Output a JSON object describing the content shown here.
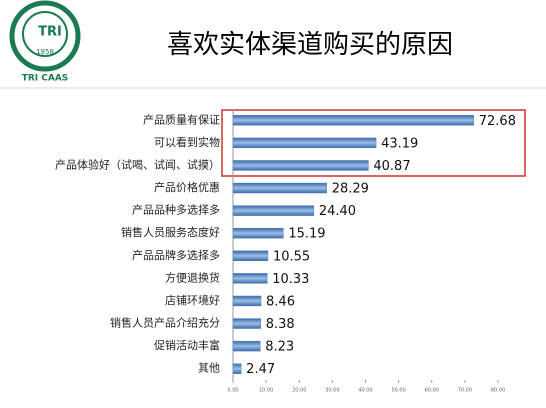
{
  "logo": {
    "abbr": "TRI",
    "year": "1958",
    "name": "TRI CAAS"
  },
  "chart_data": {
    "type": "bar",
    "orientation": "horizontal",
    "title": "喜欢实体渠道购买的原因",
    "categories": [
      "产品质量有保证",
      "可以看到实物",
      "产品体验好（试喝、试闻、试摸）",
      "产品价格优惠",
      "产品品种多选择多",
      "销售人员服务态度好",
      "产品品牌多选择多",
      "方便退换货",
      "店铺环境好",
      "销售人员产品介绍充分",
      "促销活动丰富",
      "其他"
    ],
    "values": [
      72.68,
      43.19,
      40.87,
      28.29,
      24.4,
      15.19,
      10.55,
      10.33,
      8.46,
      8.38,
      8.23,
      2.47
    ],
    "value_labels": [
      "72.68",
      "43.19",
      "40.87",
      "28.29",
      "24.40",
      "15.19",
      "10.55",
      "10.33",
      "8.46",
      "8.38",
      "8.23",
      "2.47"
    ],
    "color": "#4f81bd",
    "xlim": [
      0,
      80
    ],
    "xticks": [
      {
        "value": 0,
        "label": "0.00"
      },
      {
        "value": 10,
        "label": "10.00"
      },
      {
        "value": 20,
        "label": "20.00"
      },
      {
        "value": 30,
        "label": "30.00"
      },
      {
        "value": 40,
        "label": "40.00"
      },
      {
        "value": 50,
        "label": "50.00"
      },
      {
        "value": 60,
        "label": "60.00"
      },
      {
        "value": 70,
        "label": "70.00"
      },
      {
        "value": 80,
        "label": "80.00"
      }
    ]
  }
}
